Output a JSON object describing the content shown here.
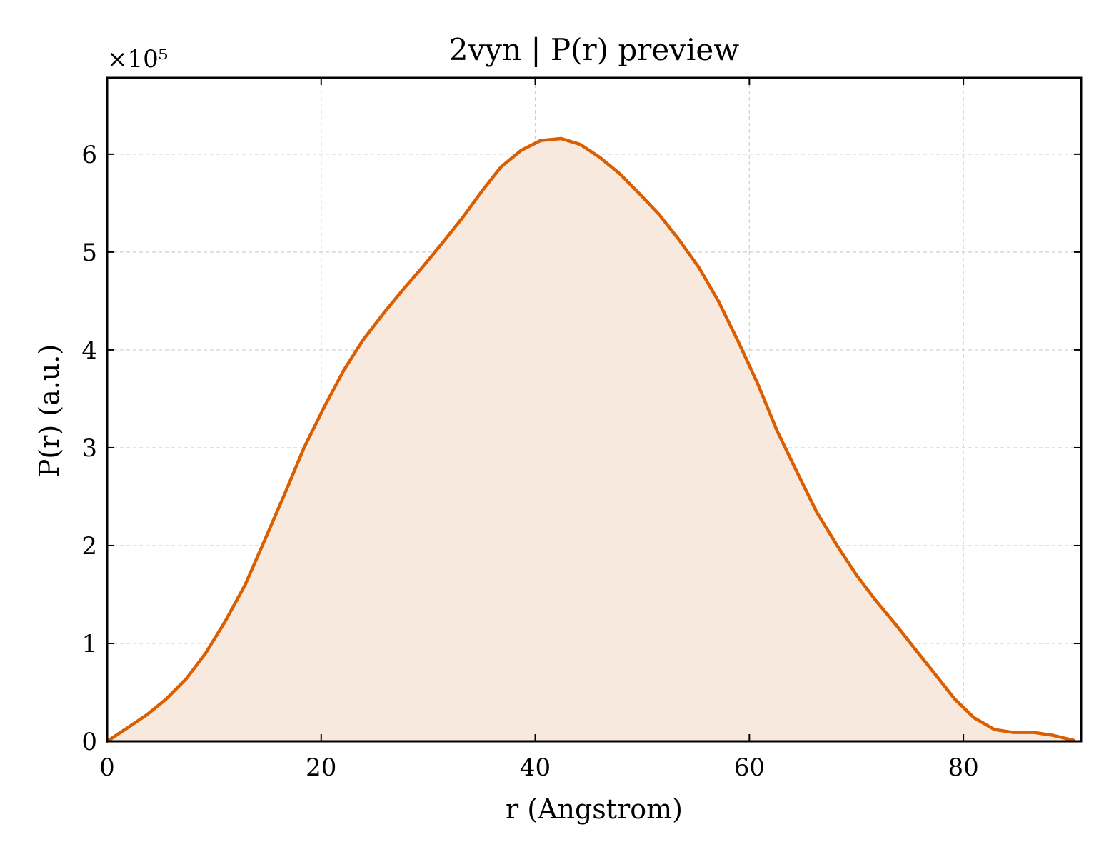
{
  "chart_data": {
    "type": "area",
    "title": "2vyn | P(r) preview",
    "xlabel": "r (Angstrom)",
    "ylabel": "P(r) (a.u.)",
    "y_multiplier": "×10⁵",
    "xlim": [
      0,
      91
    ],
    "ylim": [
      0,
      6.78
    ],
    "xticks": [
      0,
      20,
      40,
      60,
      80
    ],
    "xtick_labels": [
      "0",
      "20",
      "40",
      "60",
      "80"
    ],
    "yticks": [
      0,
      1,
      2,
      3,
      4,
      5,
      6
    ],
    "ytick_labels": [
      "0",
      "1",
      "2",
      "3",
      "4",
      "5",
      "6"
    ],
    "grid": true,
    "line_color": "#d95f02",
    "fill_color": "#f8e9df",
    "series": [
      {
        "x": [
          0,
          1.8,
          3.7,
          5.5,
          7.4,
          9.2,
          11.0,
          12.9,
          14.7,
          16.6,
          18.4,
          20.3,
          22.1,
          23.9,
          25.8,
          27.6,
          29.5,
          31.3,
          33.2,
          35.0,
          36.8,
          38.7,
          40.5,
          42.4,
          44.2,
          46.0,
          47.9,
          49.7,
          51.6,
          53.4,
          55.3,
          57.1,
          58.9,
          60.8,
          62.6,
          64.5,
          66.3,
          68.2,
          70.0,
          71.8,
          73.7,
          75.5,
          77.4,
          79.2,
          81.0,
          82.9,
          84.7,
          86.6,
          88.4,
          90.3
        ],
        "y": [
          0.0,
          0.13,
          0.27,
          0.43,
          0.64,
          0.9,
          1.22,
          1.6,
          2.05,
          2.53,
          3.0,
          3.42,
          3.79,
          4.1,
          4.37,
          4.61,
          4.85,
          5.09,
          5.35,
          5.62,
          5.87,
          6.04,
          6.14,
          6.16,
          6.1,
          5.97,
          5.8,
          5.6,
          5.38,
          5.13,
          4.84,
          4.5,
          4.1,
          3.65,
          3.17,
          2.74,
          2.34,
          2.0,
          1.7,
          1.44,
          1.19,
          0.94,
          0.68,
          0.43,
          0.24,
          0.12,
          0.09,
          0.09,
          0.06,
          0.01
        ]
      }
    ]
  }
}
